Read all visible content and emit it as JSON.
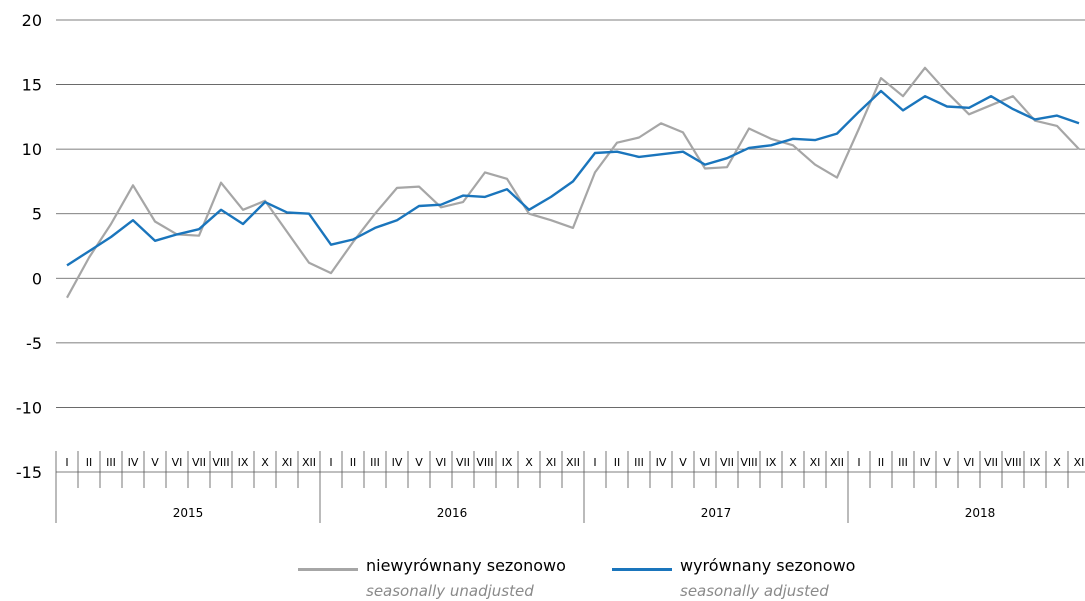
{
  "chart_data": {
    "type": "line",
    "ylim": [
      -15,
      20
    ],
    "yticks": [
      -15,
      -10,
      -5,
      0,
      5,
      10,
      15,
      20
    ],
    "month_labels": [
      "I",
      "II",
      "III",
      "IV",
      "V",
      "VI",
      "VII",
      "VIII",
      "IX",
      "X",
      "XI",
      "XII"
    ],
    "years": [
      "2015",
      "2016",
      "2017",
      "2018"
    ],
    "last_year_months_shown": 11,
    "grid": true,
    "series": [
      {
        "name": "niewyrównany sezonowo",
        "name_en": "seasonally unadjusted",
        "color": "#a6a6a6",
        "values": [
          -1.5,
          1.6,
          4.2,
          7.2,
          4.4,
          3.4,
          3.3,
          7.4,
          5.3,
          6.0,
          3.6,
          1.2,
          0.4,
          2.8,
          5.0,
          7.0,
          7.1,
          5.5,
          5.9,
          8.2,
          7.7,
          5.0,
          4.5,
          3.9,
          8.2,
          10.5,
          10.9,
          12.0,
          11.3,
          8.5,
          8.6,
          11.6,
          10.8,
          10.3,
          8.8,
          7.8,
          11.6,
          15.5,
          14.1,
          16.3,
          14.4,
          12.7,
          13.4,
          14.1,
          12.2,
          11.8,
          10.0
        ]
      },
      {
        "name": "wyrównany sezonowo",
        "name_en": "seasonally adjusted",
        "color": "#1a75bc",
        "values": [
          1.0,
          2.1,
          3.2,
          4.5,
          2.9,
          3.4,
          3.8,
          5.3,
          4.2,
          5.9,
          5.1,
          5.0,
          2.6,
          3.0,
          3.9,
          4.5,
          5.6,
          5.7,
          6.4,
          6.3,
          6.9,
          5.3,
          6.3,
          7.5,
          9.7,
          9.8,
          9.4,
          9.6,
          9.8,
          8.8,
          9.3,
          10.1,
          10.3,
          10.8,
          10.7,
          11.2,
          12.9,
          14.5,
          13.0,
          14.1,
          13.3,
          13.2,
          14.1,
          13.1,
          12.3,
          12.6,
          12.0
        ]
      }
    ]
  }
}
